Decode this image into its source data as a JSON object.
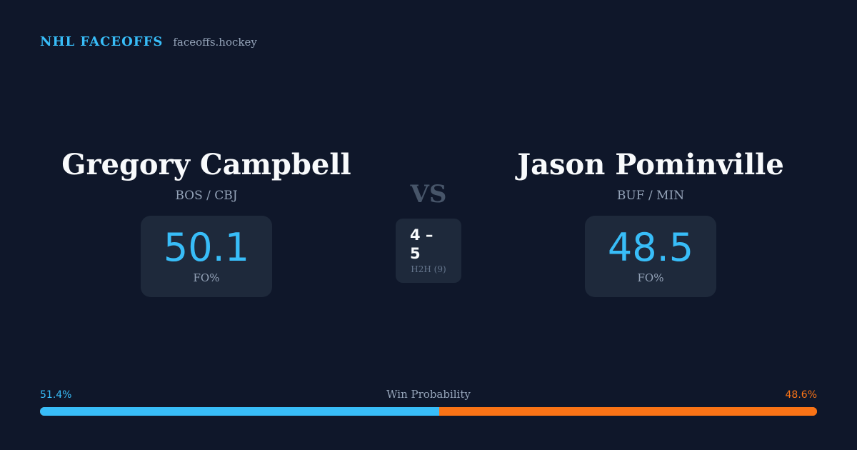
{
  "brand": {
    "title": "NHL FACEOFFS",
    "site": "faceoffs.hockey"
  },
  "player_left": {
    "name": "Gregory Campbell",
    "teams": "BOS / CBJ",
    "stat_value": "50.1",
    "stat_label": "FO%"
  },
  "player_right": {
    "name": "Jason Pominville",
    "teams": "BUF / MIN",
    "stat_value": "48.5",
    "stat_label": "FO%"
  },
  "matchup": {
    "vs": "VS",
    "h2h_score": "4 – 5",
    "h2h_label": "H2H (9)"
  },
  "win_probability": {
    "title": "Win Probability",
    "left_label": "51.4%",
    "right_label": "48.6%",
    "left_fraction": 0.514,
    "right_fraction": 0.486,
    "left_color": "#38bdf8",
    "right_color": "#f97316"
  },
  "colors": {
    "background": "#0f172a",
    "card": "#1e293b",
    "accent": "#38bdf8",
    "secondary_accent": "#f97316"
  }
}
